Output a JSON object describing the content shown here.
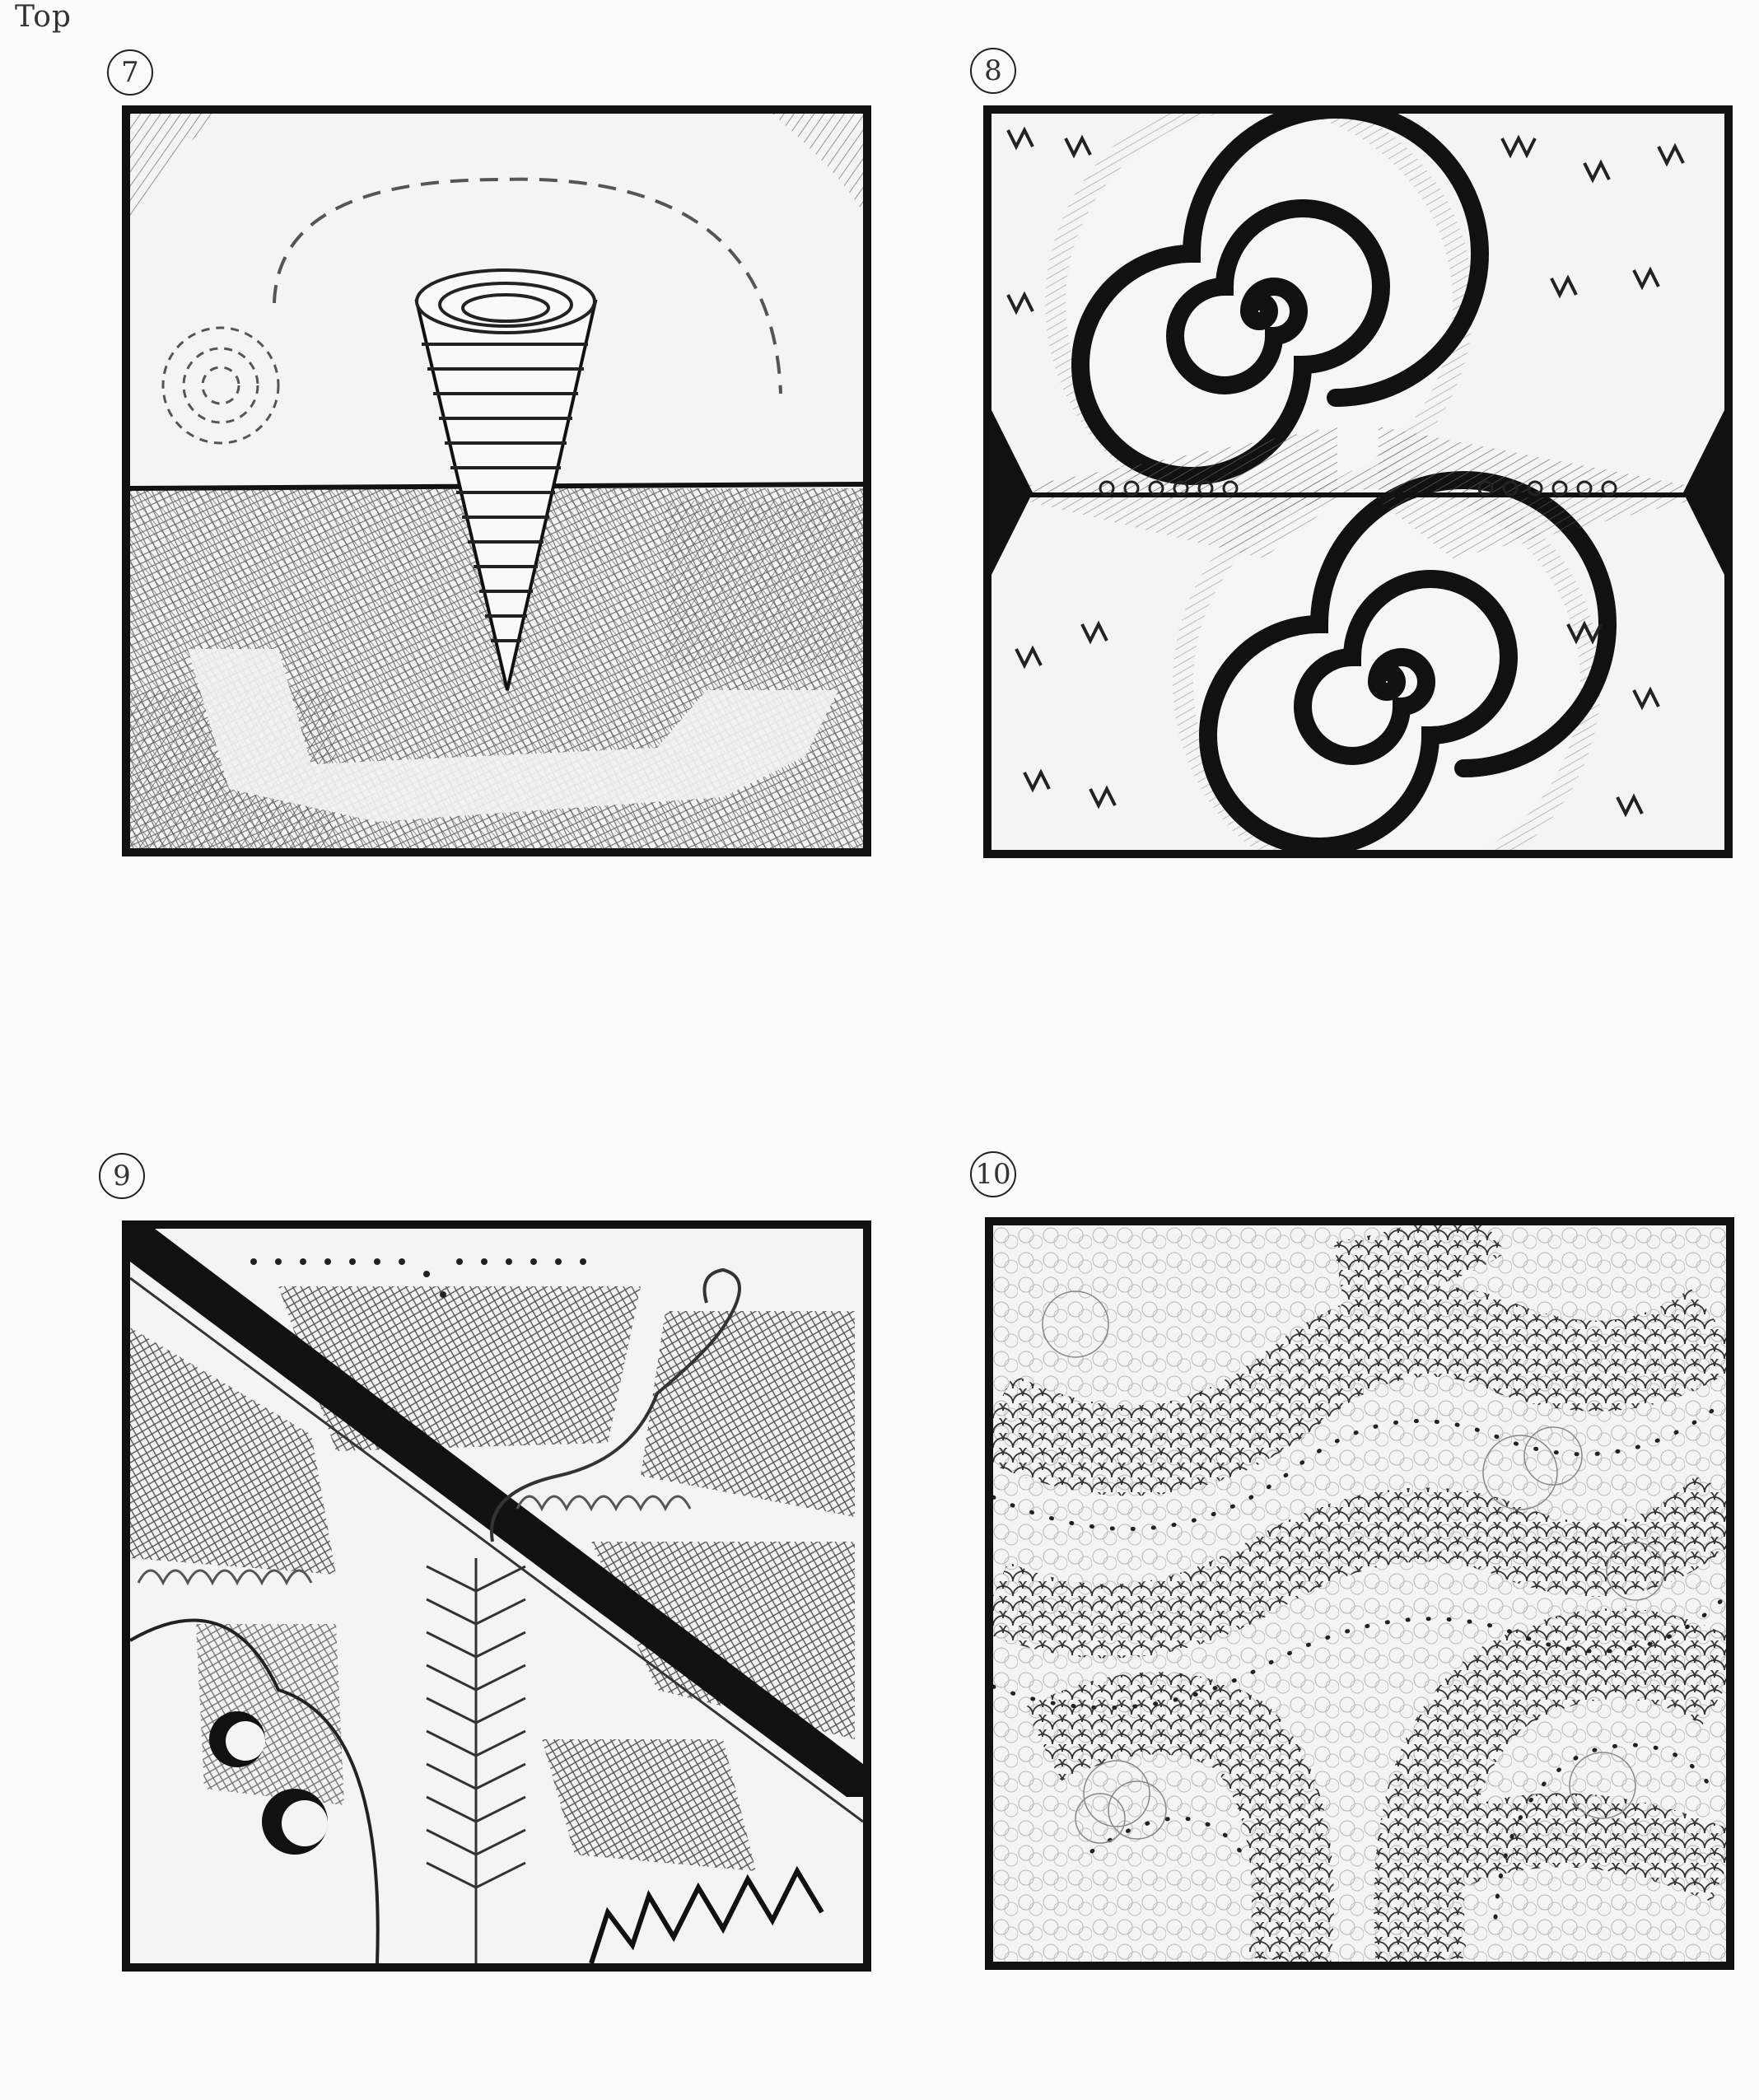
{
  "page": {
    "orientation_label": "Top"
  },
  "panels": [
    {
      "number": "7",
      "subject": "cone-over-horizon"
    },
    {
      "number": "8",
      "subject": "mirrored-spirals"
    },
    {
      "number": "9",
      "subject": "diagonal-split-textures"
    },
    {
      "number": "10",
      "subject": "scaled-serpentine-bands"
    }
  ],
  "colors": {
    "ink": "#111111",
    "graphite": "#444444",
    "paper": "#f4f4f4"
  }
}
